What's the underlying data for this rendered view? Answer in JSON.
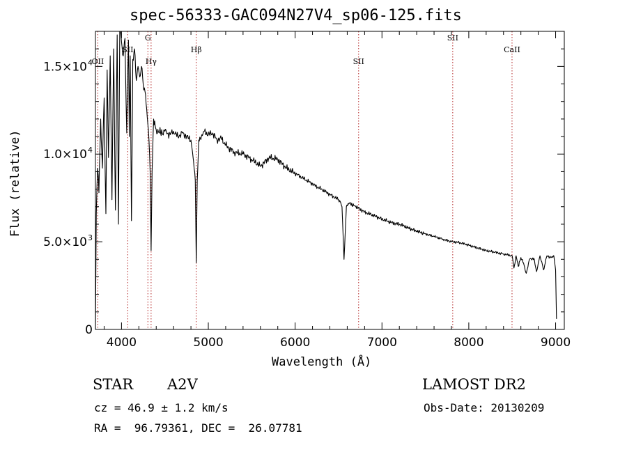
{
  "chart_data": {
    "type": "line",
    "title": "spec-56333-GAC094N27V4_sp06-125.fits",
    "xlabel": "Wavelength (Å)",
    "ylabel": "Flux (relative)",
    "xlim": [
      3700,
      9100
    ],
    "ylim": [
      0,
      17000
    ],
    "x_ticks": [
      {
        "value": 4000,
        "label": "4000"
      },
      {
        "value": 5000,
        "label": "5000"
      },
      {
        "value": 6000,
        "label": "6000"
      },
      {
        "value": 7000,
        "label": "7000"
      },
      {
        "value": 8000,
        "label": "8000"
      },
      {
        "value": 9000,
        "label": "9000"
      }
    ],
    "y_ticks": [
      {
        "value": 0,
        "label": "0"
      },
      {
        "value": 5000,
        "label": "5.0×10",
        "exp": "3"
      },
      {
        "value": 10000,
        "label": "1.0×10",
        "exp": "4"
      },
      {
        "value": 15000,
        "label": "1.5×10",
        "exp": "4"
      }
    ],
    "grid": false,
    "line_color": "#000000",
    "marker_color": "#b22222",
    "spectral_lines": [
      {
        "wavelength": 3727,
        "label": "OII"
      },
      {
        "wavelength": 4072,
        "label": "SII"
      },
      {
        "wavelength": 4304,
        "label": "G"
      },
      {
        "wavelength": 4341,
        "label": "Hγ"
      },
      {
        "wavelength": 4861,
        "label": "Hβ"
      },
      {
        "wavelength": 6731,
        "label": "SII"
      },
      {
        "wavelength": 7815,
        "label": "SII"
      },
      {
        "wavelength": 8498,
        "label": "CaII"
      }
    ],
    "series": [
      {
        "x": [
          3700,
          3710,
          3725,
          3740,
          3760,
          3780,
          3800,
          3820,
          3835,
          3850,
          3870,
          3890,
          3910,
          3930,
          3950,
          3965,
          3980,
          4000,
          4020,
          4040,
          4060,
          4080,
          4090,
          4100,
          4115,
          4130,
          4150,
          4170,
          4190,
          4210,
          4230,
          4250,
          4270,
          4290,
          4310,
          4330,
          4341,
          4352,
          4370,
          4400,
          4450,
          4500,
          4550,
          4600,
          4650,
          4700,
          4750,
          4800,
          4830,
          4850,
          4861,
          4872,
          4890,
          4920,
          4950,
          5000,
          5050,
          5100,
          5150,
          5200,
          5300,
          5400,
          5500,
          5600,
          5700,
          5800,
          5900,
          6000,
          6100,
          6200,
          6300,
          6400,
          6500,
          6540,
          6563,
          6590,
          6620,
          6700,
          6800,
          6900,
          7000,
          7100,
          7200,
          7300,
          7400,
          7500,
          7600,
          7700,
          7800,
          7900,
          8000,
          8100,
          8200,
          8300,
          8400,
          8450,
          8500,
          8520,
          8545,
          8570,
          8600,
          8630,
          8662,
          8700,
          8750,
          8780,
          8820,
          8860,
          8900,
          8950,
          8980,
          9000,
          9010
        ],
        "y": [
          0,
          6600,
          9200,
          7800,
          12000,
          9200,
          13200,
          6600,
          14800,
          9800,
          15600,
          7400,
          16000,
          6800,
          16800,
          6000,
          17000,
          16400,
          15600,
          16600,
          11200,
          16500,
          11000,
          15600,
          6200,
          15400,
          16000,
          14200,
          15000,
          14400,
          15000,
          14000,
          13600,
          12600,
          11400,
          9000,
          4500,
          9000,
          12000,
          11400,
          11200,
          11300,
          11100,
          11300,
          11000,
          11200,
          11000,
          10800,
          9600,
          8500,
          3800,
          8500,
          10800,
          11000,
          11300,
          11100,
          11200,
          10800,
          10900,
          10500,
          10100,
          10000,
          9700,
          9300,
          9800,
          9700,
          9200,
          8900,
          8600,
          8300,
          8000,
          7700,
          7400,
          7000,
          4000,
          7000,
          7200,
          7000,
          6700,
          6500,
          6300,
          6100,
          6000,
          5800,
          5600,
          5450,
          5300,
          5150,
          5000,
          4950,
          4800,
          4650,
          4500,
          4400,
          4300,
          4250,
          4200,
          3500,
          4200,
          3600,
          4100,
          3800,
          3200,
          4000,
          4050,
          3300,
          4200,
          3400,
          4200,
          4100,
          4200,
          3400,
          600
        ]
      }
    ]
  },
  "footer": {
    "obj_class": "STAR",
    "subclass": "A2V",
    "survey": "LAMOST DR2",
    "cz": "cz = 46.9 ± 1.2 km/s",
    "obs_date": "Obs-Date: 20130209",
    "coords": "RA =  96.79361, DEC =  26.07781"
  }
}
